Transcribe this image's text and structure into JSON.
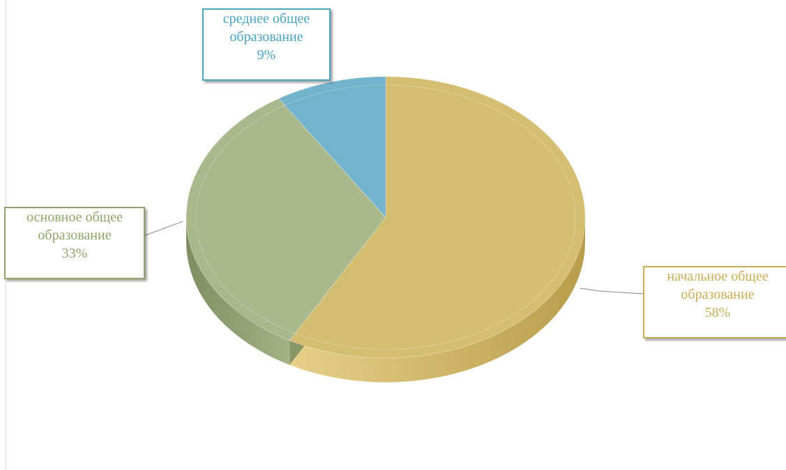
{
  "chart_data": {
    "type": "pie",
    "title": "",
    "three_d": true,
    "slices": [
      {
        "category": "начальное общее образование",
        "line1": "начальное общее",
        "line2": "образование",
        "value": 58,
        "label_value": "58%",
        "color": "#d4be72",
        "label_color": "#c9ad55"
      },
      {
        "category": "основное общее образование",
        "line1": "основное общее",
        "line2": "образование",
        "value": 33,
        "label_value": "33%",
        "color": "#a9b98d",
        "label_color": "#8fa46b"
      },
      {
        "category": "среднее общее образование",
        "line1": "среднее общее",
        "line2": "образование",
        "value": 9,
        "label_value": "9%",
        "color": "#74b3cc",
        "label_color": "#4aa3c2"
      }
    ],
    "legend": "none",
    "data_labels": "category-and-percent, outside with leader lines"
  }
}
